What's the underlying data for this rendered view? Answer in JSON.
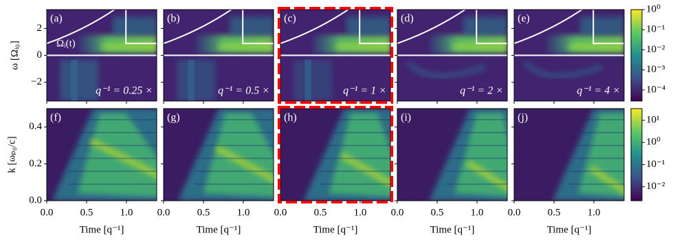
{
  "chart_data": [
    {
      "type": "heatmap",
      "label": "(a)",
      "annotation": "q⁻¹ = 0.25 ×",
      "curve_label": "Ωᵢ(t)",
      "ylabel": "ω [Ωᵢ₀]",
      "xlim": [
        0,
        1.38
      ],
      "ylim": [
        -3.4,
        3.4
      ],
      "xticks": [
        0,
        0.5,
        1
      ],
      "yticks": [
        {
          "value": -2,
          "label": "−2"
        },
        0,
        2
      ],
      "show_xtick_labels": false,
      "show_ytick_labels": true,
      "highlighted": false
    },
    {
      "type": "heatmap",
      "label": "(b)",
      "annotation": "q⁻¹ = 0.5 ×",
      "xlim": [
        0,
        1.38
      ],
      "ylim": [
        -3.4,
        3.4
      ],
      "xticks": [
        0,
        0.5,
        1
      ],
      "yticks": [
        -2,
        0,
        2
      ],
      "show_xtick_labels": false,
      "show_ytick_labels": false,
      "highlighted": false
    },
    {
      "type": "heatmap",
      "label": "(c)",
      "annotation": "q⁻¹ = 1 ×",
      "xlim": [
        0,
        1.38
      ],
      "ylim": [
        -3.4,
        3.4
      ],
      "xticks": [
        0,
        0.5,
        1
      ],
      "yticks": [
        -2,
        0,
        2
      ],
      "show_xtick_labels": false,
      "show_ytick_labels": false,
      "highlighted": true
    },
    {
      "type": "heatmap",
      "label": "(d)",
      "annotation": "q⁻¹ = 2 ×",
      "xlim": [
        0,
        1.38
      ],
      "ylim": [
        -3.4,
        3.4
      ],
      "xticks": [
        0,
        0.5,
        1
      ],
      "yticks": [
        -2,
        0,
        2
      ],
      "show_xtick_labels": false,
      "show_ytick_labels": false,
      "highlighted": false
    },
    {
      "type": "heatmap",
      "label": "(e)",
      "annotation": "q⁻¹ = 4 ×",
      "xlim": [
        0,
        1.38
      ],
      "ylim": [
        -3.4,
        3.4
      ],
      "xticks": [
        0,
        0.5,
        1
      ],
      "yticks": [
        -2,
        0,
        2
      ],
      "show_xtick_labels": false,
      "show_ytick_labels": false,
      "highlighted": false
    },
    {
      "type": "heatmap",
      "label": "(f)",
      "ylabel": "k [ωₚ₀/c]",
      "xlabel": "Time [q⁻¹]",
      "xlim": [
        0,
        1.38
      ],
      "ylim": [
        0,
        0.5
      ],
      "xticks": [
        {
          "value": 0,
          "label": "0.0"
        },
        0.5,
        {
          "value": 1,
          "label": "1.0"
        }
      ],
      "yticks": [
        {
          "value": 0,
          "label": "0.0"
        },
        0.2,
        0.4
      ],
      "show_xtick_labels": true,
      "show_ytick_labels": true,
      "highlighted": false
    },
    {
      "type": "heatmap",
      "label": "(g)",
      "xlabel": "Time [q⁻¹]",
      "xlim": [
        0,
        1.38
      ],
      "ylim": [
        0,
        0.5
      ],
      "xticks": [
        {
          "value": 0,
          "label": "0.0"
        },
        0.5,
        {
          "value": 1,
          "label": "1.0"
        }
      ],
      "yticks": [
        0,
        0.2,
        0.4
      ],
      "show_xtick_labels": true,
      "show_ytick_labels": false,
      "highlighted": false
    },
    {
      "type": "heatmap",
      "label": "(h)",
      "xlabel": "Time [q⁻¹]",
      "xlim": [
        0,
        1.38
      ],
      "ylim": [
        0,
        0.5
      ],
      "xticks": [
        {
          "value": 0,
          "label": "0.0"
        },
        0.5,
        {
          "value": 1,
          "label": "1.0"
        }
      ],
      "yticks": [
        0,
        0.2,
        0.4
      ],
      "show_xtick_labels": true,
      "show_ytick_labels": false,
      "highlighted": true
    },
    {
      "type": "heatmap",
      "label": "(i)",
      "xlabel": "Time [q⁻¹]",
      "xlim": [
        0,
        1.38
      ],
      "ylim": [
        0,
        0.5
      ],
      "xticks": [
        {
          "value": 0,
          "label": "0.0"
        },
        0.5,
        {
          "value": 1,
          "label": "1.0"
        }
      ],
      "yticks": [
        0,
        0.2,
        0.4
      ],
      "show_xtick_labels": true,
      "show_ytick_labels": false,
      "highlighted": false
    },
    {
      "type": "heatmap",
      "label": "(j)",
      "xlabel": "Time [q⁻¹]",
      "xlim": [
        0,
        1.38
      ],
      "ylim": [
        0,
        0.5
      ],
      "xticks": [
        {
          "value": 0,
          "label": "0.0"
        },
        0.5,
        {
          "value": 1,
          "label": "1.0"
        }
      ],
      "yticks": [
        0,
        0.2,
        0.4
      ],
      "show_xtick_labels": true,
      "show_ytick_labels": false,
      "highlighted": false
    },
    {
      "type": "colorbar",
      "log": true,
      "colormap": "viridis",
      "ylim": [
        2.82e-05,
        1
      ],
      "yticks": [
        {
          "value": 1,
          "label": "10⁰"
        },
        {
          "value": 0.1,
          "label": "10⁻¹"
        },
        {
          "value": 0.01,
          "label": "10⁻²"
        },
        {
          "value": 0.001,
          "label": "10⁻³"
        },
        {
          "value": 0.0001,
          "label": "10⁻⁴"
        }
      ]
    },
    {
      "type": "colorbar",
      "log": true,
      "colormap": "viridis",
      "ylim": [
        0.00234,
        33.9
      ],
      "yticks": [
        {
          "value": 10,
          "label": "10¹"
        },
        {
          "value": 1,
          "label": "10⁰"
        },
        {
          "value": 0.1,
          "label": "10⁻¹"
        },
        {
          "value": 0.01,
          "label": "10⁻²"
        }
      ]
    }
  ]
}
